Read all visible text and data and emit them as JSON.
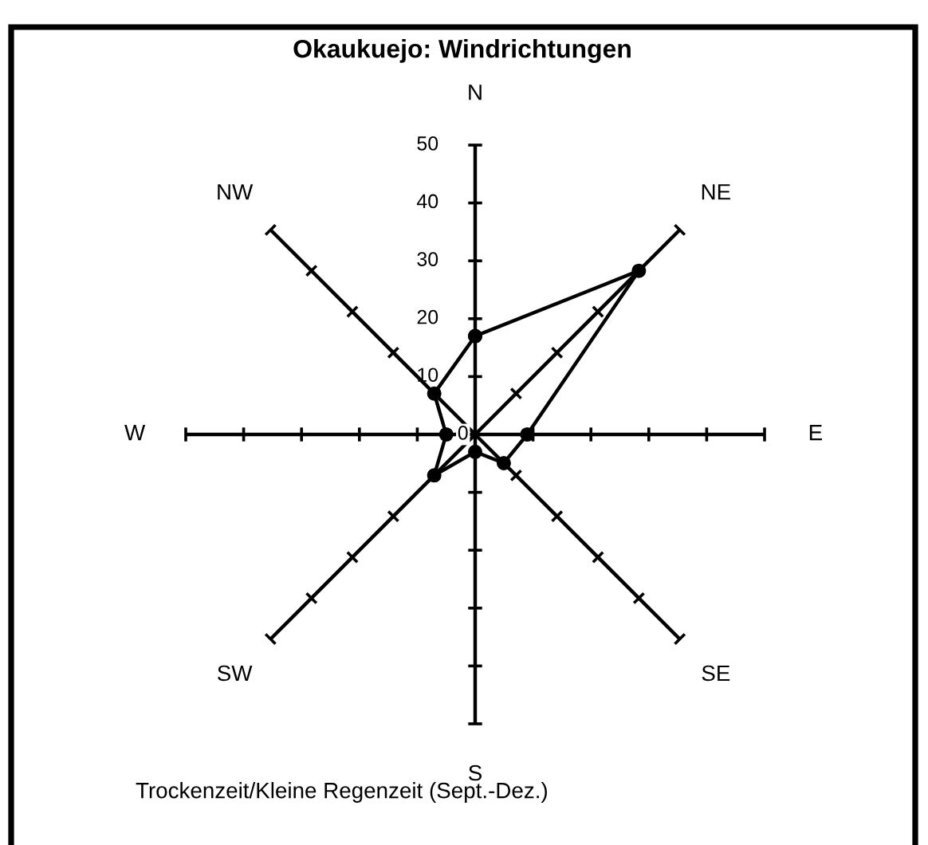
{
  "chart_data": {
    "type": "radar",
    "title": "Okaukuejo: Windrichtungen",
    "categories": [
      "N",
      "NE",
      "E",
      "SE",
      "S",
      "SW",
      "W",
      "NW"
    ],
    "series": [
      {
        "color": "#000000",
        "values": [
          17,
          40,
          9,
          7,
          3,
          10,
          5,
          10
        ]
      }
    ],
    "ylim": [
      0,
      50
    ],
    "yticks": [
      0,
      10,
      20,
      30,
      40,
      50
    ],
    "marker": "circle",
    "line_style": "solid",
    "annotations": [
      "Trockenzeit/Kleine Regenzeit (Sept.-Dez.)"
    ]
  }
}
